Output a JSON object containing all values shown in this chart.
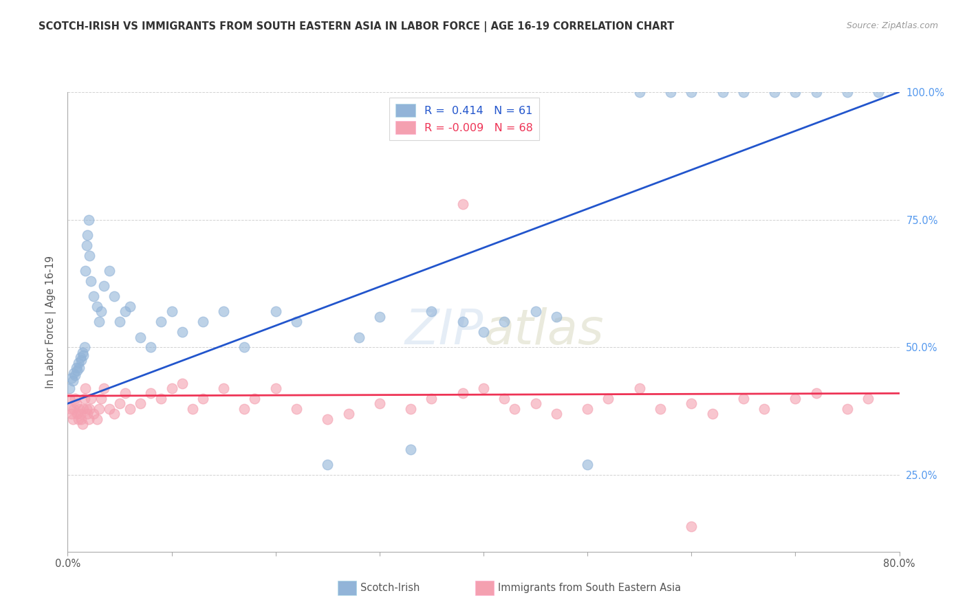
{
  "title": "SCOTCH-IRISH VS IMMIGRANTS FROM SOUTH EASTERN ASIA IN LABOR FORCE | AGE 16-19 CORRELATION CHART",
  "source": "Source: ZipAtlas.com",
  "ylabel": "In Labor Force | Age 16-19",
  "legend_blue_label": "Scotch-Irish",
  "legend_pink_label": "Immigrants from South Eastern Asia",
  "R_blue": 0.414,
  "N_blue": 61,
  "R_pink": -0.009,
  "N_pink": 68,
  "blue_color": "#92B4D8",
  "pink_color": "#F4A0B0",
  "line_blue": "#2255CC",
  "line_pink": "#EE3355",
  "background_color": "#FFFFFF",
  "grid_color": "#CCCCCC",
  "title_color": "#333333",
  "right_tick_color": "#5599EE",
  "xlim": [
    0,
    80
  ],
  "ylim": [
    10,
    100
  ],
  "blue_x": [
    0.2,
    0.4,
    0.5,
    0.6,
    0.7,
    0.8,
    0.9,
    1.0,
    1.1,
    1.2,
    1.3,
    1.4,
    1.5,
    1.6,
    1.7,
    1.8,
    1.9,
    2.0,
    2.1,
    2.2,
    2.5,
    2.8,
    3.0,
    3.2,
    3.5,
    4.0,
    4.5,
    5.0,
    5.5,
    6.0,
    7.0,
    8.0,
    9.0,
    10.0,
    11.0,
    13.0,
    15.0,
    17.0,
    20.0,
    22.0,
    25.0,
    28.0,
    30.0,
    33.0,
    35.0,
    38.0,
    40.0,
    42.0,
    45.0,
    47.0,
    50.0,
    55.0,
    58.0,
    60.0,
    63.0,
    65.0,
    68.0,
    70.0,
    72.0,
    75.0,
    78.0
  ],
  "blue_y": [
    42.0,
    44.0,
    43.5,
    45.0,
    44.5,
    46.0,
    45.5,
    47.0,
    46.0,
    48.0,
    47.5,
    49.0,
    48.5,
    50.0,
    65.0,
    70.0,
    72.0,
    75.0,
    68.0,
    63.0,
    60.0,
    58.0,
    55.0,
    57.0,
    62.0,
    65.0,
    60.0,
    55.0,
    57.0,
    58.0,
    52.0,
    50.0,
    55.0,
    57.0,
    53.0,
    55.0,
    57.0,
    50.0,
    57.0,
    55.0,
    27.0,
    52.0,
    56.0,
    30.0,
    57.0,
    55.0,
    53.0,
    55.0,
    57.0,
    56.0,
    27.0,
    100.0,
    100.0,
    100.0,
    100.0,
    100.0,
    100.0,
    100.0,
    100.0,
    100.0,
    100.0
  ],
  "pink_x": [
    0.2,
    0.3,
    0.4,
    0.5,
    0.6,
    0.7,
    0.8,
    0.9,
    1.0,
    1.1,
    1.2,
    1.3,
    1.4,
    1.5,
    1.6,
    1.7,
    1.8,
    1.9,
    2.0,
    2.1,
    2.2,
    2.5,
    2.8,
    3.0,
    3.2,
    3.5,
    4.0,
    4.5,
    5.0,
    5.5,
    6.0,
    7.0,
    8.0,
    9.0,
    10.0,
    11.0,
    12.0,
    13.0,
    15.0,
    17.0,
    18.0,
    20.0,
    22.0,
    25.0,
    27.0,
    30.0,
    33.0,
    35.0,
    38.0,
    40.0,
    42.0,
    43.0,
    45.0,
    47.0,
    50.0,
    52.0,
    55.0,
    57.0,
    60.0,
    62.0,
    65.0,
    67.0,
    70.0,
    72.0,
    75.0,
    77.0,
    38.0,
    60.0
  ],
  "pink_y": [
    40.0,
    38.0,
    37.0,
    36.0,
    38.0,
    40.0,
    39.0,
    37.0,
    36.0,
    38.0,
    37.0,
    36.0,
    35.0,
    38.0,
    40.0,
    42.0,
    38.0,
    37.0,
    36.0,
    38.0,
    40.0,
    37.0,
    36.0,
    38.0,
    40.0,
    42.0,
    38.0,
    37.0,
    39.0,
    41.0,
    38.0,
    39.0,
    41.0,
    40.0,
    42.0,
    43.0,
    38.0,
    40.0,
    42.0,
    38.0,
    40.0,
    42.0,
    38.0,
    36.0,
    37.0,
    39.0,
    38.0,
    40.0,
    41.0,
    42.0,
    40.0,
    38.0,
    39.0,
    37.0,
    38.0,
    40.0,
    42.0,
    38.0,
    39.0,
    37.0,
    40.0,
    38.0,
    40.0,
    41.0,
    38.0,
    40.0,
    78.0,
    15.0
  ]
}
